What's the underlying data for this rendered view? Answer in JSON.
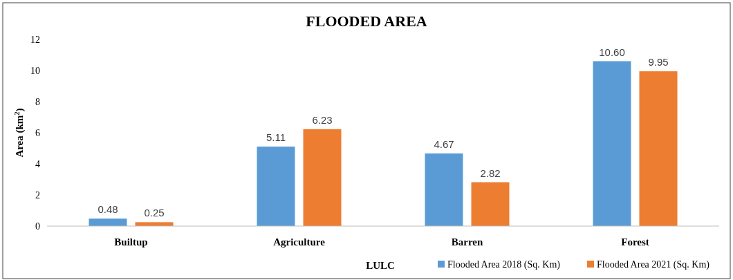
{
  "chart_data": {
    "type": "bar",
    "title": "FLOODED AREA",
    "xlabel": "LULC",
    "ylabel": "Area (km$^{2}$)",
    "categories": [
      "Builtup",
      "Agriculture",
      "Barren",
      "Forest"
    ],
    "series": [
      {
        "name": "Flooded Area 2018 (Sq. Km)",
        "color": "#5b9bd5",
        "values": [
          0.48,
          5.11,
          4.67,
          10.6
        ],
        "value_labels": [
          "0.48",
          "5.11",
          "4.67",
          "10.60"
        ]
      },
      {
        "name": "Flooded Area 2021 (Sq. Km)",
        "color": "#ed7d31",
        "values": [
          0.25,
          6.23,
          2.82,
          9.95
        ],
        "value_labels": [
          "0.25",
          "6.23",
          "2.82",
          "9.95"
        ]
      }
    ],
    "ylim": [
      0,
      12
    ],
    "yticks": [
      0,
      2,
      4,
      6,
      8,
      10,
      12
    ],
    "grid": false,
    "legend": "bottom right"
  }
}
